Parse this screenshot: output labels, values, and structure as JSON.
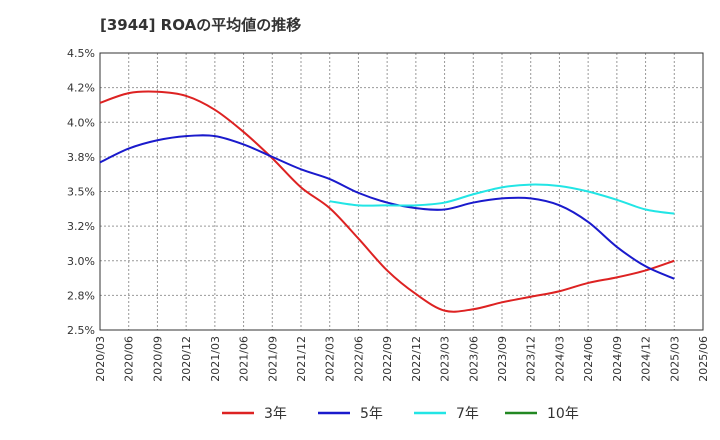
{
  "chart_data": {
    "type": "line",
    "title": "[3944]  ROAの平均値の推移",
    "xlabel": "",
    "ylabel": "",
    "ylim": [
      2.5,
      4.5
    ],
    "grid": true,
    "legend_position": "bottom",
    "yticks": [
      "2.5%",
      "2.8%",
      "3.0%",
      "3.2%",
      "3.5%",
      "3.8%",
      "4.0%",
      "4.2%",
      "4.5%"
    ],
    "x": [
      "2020/03",
      "2020/06",
      "2020/09",
      "2020/12",
      "2021/03",
      "2021/06",
      "2021/09",
      "2021/12",
      "2022/03",
      "2022/06",
      "2022/09",
      "2022/12",
      "2023/03",
      "2023/06",
      "2023/09",
      "2023/12",
      "2024/03",
      "2024/06",
      "2024/09",
      "2024/12",
      "2025/03",
      "2025/06"
    ],
    "series": [
      {
        "name": "3年",
        "color": "#dd2222",
        "values": [
          4.14,
          4.21,
          4.22,
          4.19,
          4.09,
          3.93,
          3.74,
          3.53,
          3.38,
          3.16,
          2.93,
          2.76,
          2.64,
          2.65,
          2.7,
          2.74,
          2.78,
          2.84,
          2.88,
          2.93,
          3.0,
          null
        ]
      },
      {
        "name": "5年",
        "color": "#1a1acc",
        "values": [
          3.71,
          3.81,
          3.87,
          3.9,
          3.9,
          3.84,
          3.75,
          3.66,
          3.59,
          3.49,
          3.42,
          3.38,
          3.37,
          3.42,
          3.45,
          3.45,
          3.4,
          3.28,
          3.1,
          2.96,
          2.87,
          null
        ]
      },
      {
        "name": "7年",
        "color": "#22e5e5",
        "values": [
          null,
          null,
          null,
          null,
          null,
          null,
          null,
          null,
          3.43,
          3.4,
          3.4,
          3.4,
          3.42,
          3.48,
          3.53,
          3.55,
          3.54,
          3.5,
          3.44,
          3.37,
          3.34,
          null
        ]
      },
      {
        "name": "10年",
        "color": "#228822",
        "values": [
          null,
          null,
          null,
          null,
          null,
          null,
          null,
          null,
          null,
          null,
          null,
          null,
          null,
          null,
          null,
          null,
          null,
          null,
          null,
          null,
          null,
          null
        ]
      }
    ]
  }
}
